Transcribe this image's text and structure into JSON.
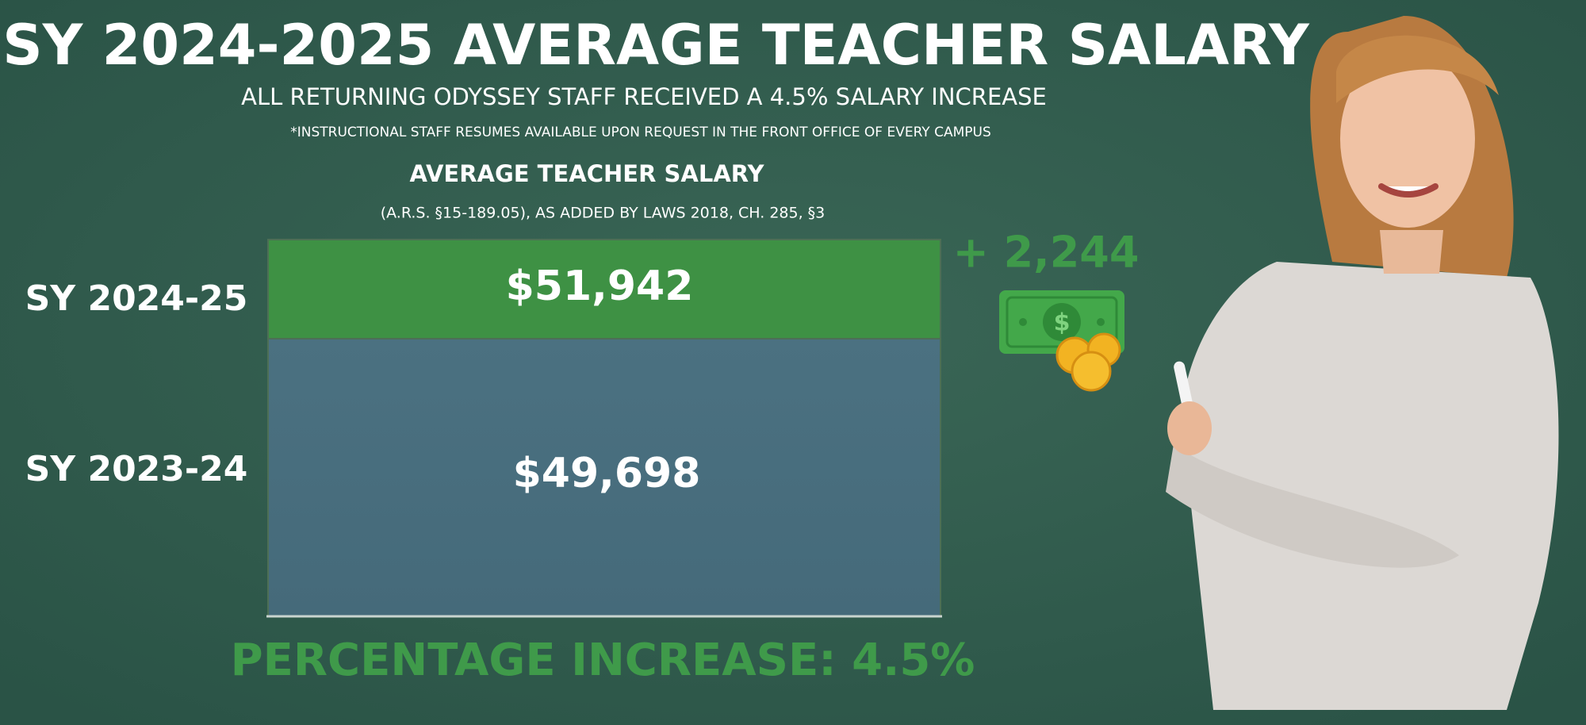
{
  "header": {
    "title": "SY 2024-2025 AVERAGE TEACHER SALARY",
    "subtitle": "ALL RETURNING ODYSSEY STAFF RECEIVED A 4.5% SALARY INCREASE",
    "note": "*INSTRUCTIONAL STAFF RESUMES AVAILABLE UPON REQUEST IN THE FRONT OFFICE OF EVERY CAMPUS"
  },
  "panel": {
    "title": "AVERAGE TEACHER SALARY",
    "subtitle": "(A.R.S. §15-189.05), AS ADDED BY LAWS 2018, CH. 285, §3",
    "rows": [
      {
        "label": "SY 2024-25",
        "value": "$51,942"
      },
      {
        "label": "SY 2023-24",
        "value": "$49,698"
      }
    ],
    "increase": "+ 2,244",
    "footer": "PERCENTAGE INCREASE: 4.5%"
  }
}
